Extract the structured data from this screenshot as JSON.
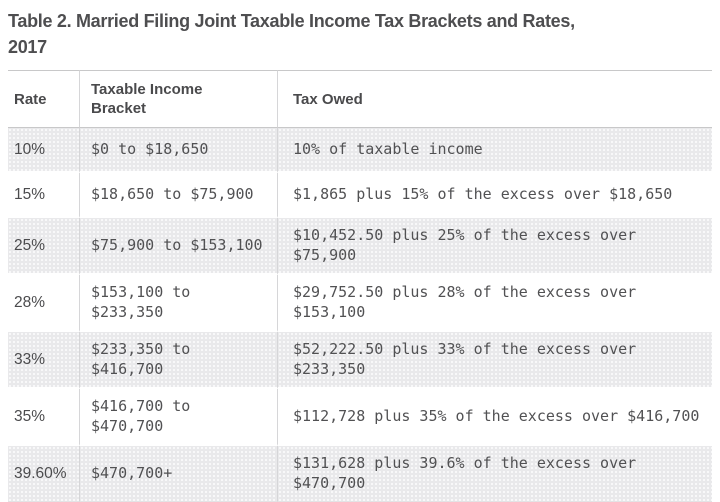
{
  "title": {
    "line1": "Table 2. Married Filing Joint Taxable Income Tax Brackets and Rates,",
    "line2": "2017"
  },
  "table": {
    "columns": [
      {
        "label": "Rate"
      },
      {
        "label": "Taxable Income Bracket"
      },
      {
        "label": "Tax Owed"
      }
    ],
    "rows": [
      {
        "rate": "10%",
        "bracket": "$0 to $18,650",
        "tax_owed": "10% of taxable income"
      },
      {
        "rate": "15%",
        "bracket": "$18,650 to $75,900",
        "tax_owed": "$1,865 plus 15% of the excess over $18,650"
      },
      {
        "rate": "25%",
        "bracket": "$75,900 to $153,100",
        "tax_owed": "$10,452.50 plus 25% of the excess over $75,900"
      },
      {
        "rate": "28%",
        "bracket": "$153,100 to $233,350",
        "tax_owed": "$29,752.50 plus 28% of the excess over $153,100"
      },
      {
        "rate": "33%",
        "bracket": "$233,350 to $416,700",
        "tax_owed": "$52,222.50 plus 33% of the excess over $233,350"
      },
      {
        "rate": "35%",
        "bracket": "$416,700 to $470,700",
        "tax_owed": "$112,728 plus 35% of the excess over $416,700"
      },
      {
        "rate": "39.60%",
        "bracket": "$470,700+",
        "tax_owed": "$131,628 plus 39.6% of the excess over $470,700"
      }
    ]
  },
  "colors": {
    "title_text": "#4e4e50",
    "header_text": "#4a4a4c",
    "body_text": "#515153",
    "rate_text": "#4b4b4d",
    "row_stripe": "#e9e9eb",
    "border_strong": "#c8c8c9",
    "border_light": "#d6d6d8"
  }
}
